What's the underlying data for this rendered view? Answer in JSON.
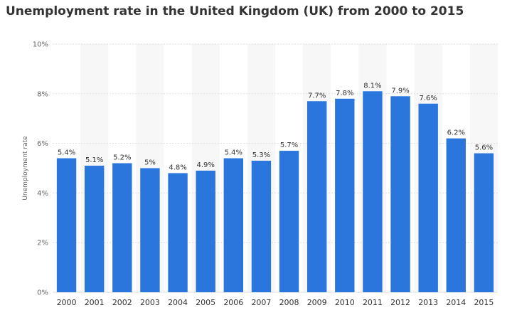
{
  "chart_data": {
    "type": "bar",
    "title": "Unemployment rate in the United Kingdom (UK) from 2000 to 2015",
    "xlabel": "",
    "ylabel": "Unemployment rate",
    "categories": [
      "2000",
      "2001",
      "2002",
      "2003",
      "2004",
      "2005",
      "2006",
      "2007",
      "2008",
      "2009",
      "2010",
      "2011",
      "2012",
      "2013",
      "2014",
      "2015"
    ],
    "values": [
      5.4,
      5.1,
      5.2,
      5.0,
      4.8,
      4.9,
      5.4,
      5.3,
      5.7,
      7.7,
      7.8,
      8.1,
      7.9,
      7.6,
      6.2,
      5.6
    ],
    "data_labels": [
      "5.4%",
      "5.1%",
      "5.2%",
      "5%",
      "4.8%",
      "4.9%",
      "5.4%",
      "5.3%",
      "5.7%",
      "7.7%",
      "7.8%",
      "8.1%",
      "7.9%",
      "7.6%",
      "6.2%",
      "5.6%"
    ],
    "ylim": [
      0,
      10
    ],
    "yticks": [
      0,
      2,
      4,
      6,
      8,
      10
    ],
    "ytick_labels": [
      "0%",
      "2%",
      "4%",
      "6%",
      "8%",
      "10%"
    ],
    "grid": true,
    "bar_color": "#2a76dd",
    "band_color": "#f7f7f7",
    "grid_color": "#dddddd"
  }
}
